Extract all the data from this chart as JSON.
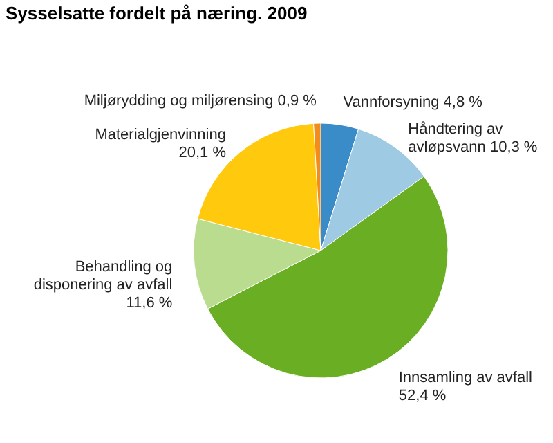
{
  "chart_data": {
    "type": "pie",
    "title": "Sysselsatte fordelt på næring. 2009",
    "categories": [
      "Vannforsyning",
      "Håndtering av avløpsvann",
      "Innsamling av avfall",
      "Behandling og disponering av avfall",
      "Materialgjenvinning",
      "Miljørydding og miljørensing"
    ],
    "values": [
      4.8,
      10.3,
      52.4,
      11.6,
      20.1,
      0.9
    ],
    "value_labels": [
      "4,8 %",
      "10,3 %",
      "52,4 %",
      "11,6 %",
      "20,1 %",
      "0,9 %"
    ],
    "colors": [
      "#3a8cc8",
      "#9fcae3",
      "#6aaf23",
      "#b9dc8f",
      "#ffc90e",
      "#f28c1c"
    ],
    "legend": false
  }
}
